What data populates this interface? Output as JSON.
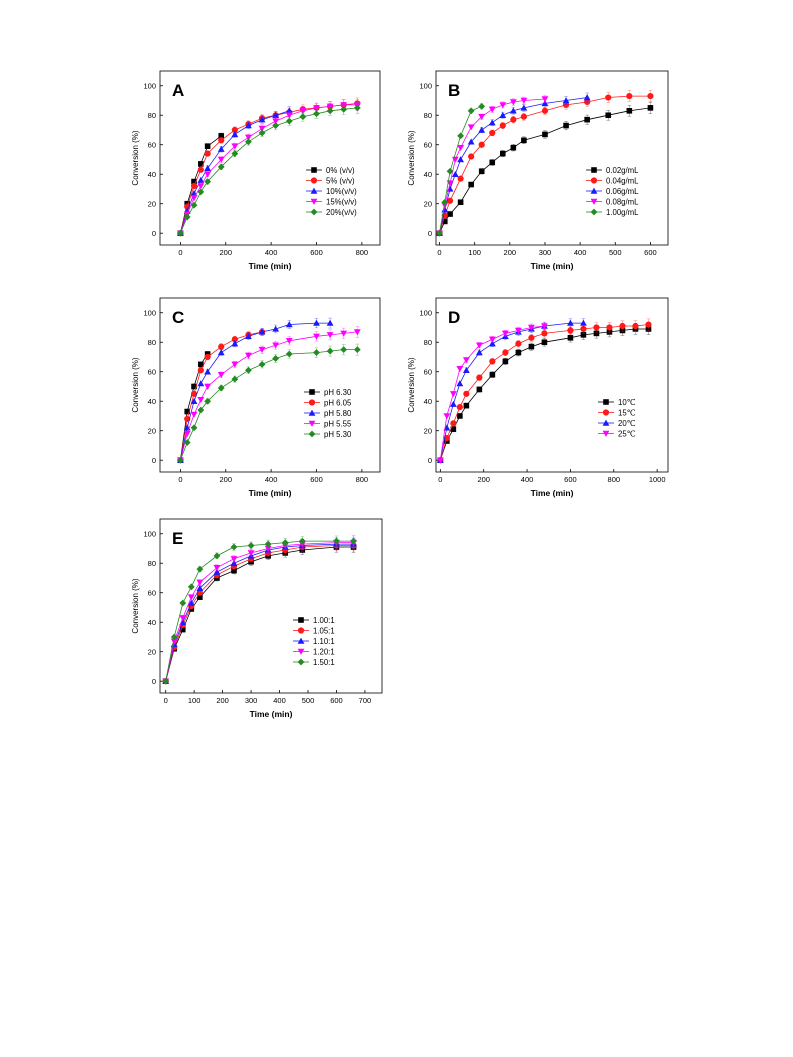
{
  "markers": [
    "square",
    "circle",
    "triangle-up",
    "triangle-down",
    "diamond"
  ],
  "chart_data": [
    {
      "type": "line",
      "panel_label": "A",
      "xlabel": "Time (min)",
      "ylabel": "Conversion (%)",
      "xlim": [
        -90,
        880
      ],
      "ylim": [
        -8,
        110
      ],
      "xticks": [
        0,
        200,
        400,
        600,
        800
      ],
      "yticks": [
        0,
        20,
        40,
        60,
        80,
        100
      ],
      "legend_position": "right",
      "series": [
        {
          "name": "0%  (v/v)",
          "color": "#000000",
          "marker": "square",
          "x": [
            0,
            30,
            60,
            90,
            120,
            180
          ],
          "y": [
            0,
            20,
            35,
            47,
            59,
            66
          ]
        },
        {
          "name": "5%  (v/v)",
          "color": "#ff1a1a",
          "marker": "circle",
          "x": [
            0,
            30,
            60,
            90,
            120,
            180,
            240,
            300,
            360,
            420,
            480,
            540,
            600,
            660,
            720,
            780
          ],
          "y": [
            0,
            18,
            32,
            43,
            54,
            63,
            70,
            74,
            78,
            80,
            82,
            84,
            85,
            86,
            87,
            88
          ]
        },
        {
          "name": "10%(v/v)",
          "color": "#1a1aff",
          "marker": "triangle-up",
          "x": [
            0,
            30,
            60,
            90,
            120,
            180,
            240,
            300,
            360,
            420,
            480
          ],
          "y": [
            0,
            15,
            27,
            36,
            44,
            57,
            67,
            73,
            77,
            80,
            83
          ]
        },
        {
          "name": "15%(v/v)",
          "color": "#ff00ff",
          "marker": "triangle-down",
          "x": [
            0,
            30,
            60,
            90,
            120,
            180,
            240,
            300,
            360,
            420,
            480,
            540,
            600,
            660,
            720,
            780
          ],
          "y": [
            0,
            13,
            24,
            32,
            40,
            50,
            59,
            65,
            71,
            76,
            80,
            83,
            85,
            86,
            87,
            87
          ]
        },
        {
          "name": "20%(v/v)",
          "color": "#228b22",
          "marker": "diamond",
          "x": [
            0,
            30,
            60,
            90,
            120,
            180,
            240,
            300,
            360,
            420,
            480,
            540,
            600,
            660,
            720,
            780
          ],
          "y": [
            0,
            11,
            19,
            28,
            35,
            45,
            54,
            62,
            68,
            73,
            76,
            79,
            81,
            83,
            84,
            85
          ]
        }
      ]
    },
    {
      "type": "line",
      "panel_label": "B",
      "xlabel": "Time (min)",
      "ylabel": "Conversion (%)",
      "xlim": [
        -10,
        650
      ],
      "ylim": [
        -8,
        110
      ],
      "xticks": [
        0,
        100,
        200,
        300,
        400,
        500,
        600
      ],
      "yticks": [
        0,
        20,
        40,
        60,
        80,
        100
      ],
      "legend_position": "right",
      "series": [
        {
          "name": "0.02g/mL",
          "color": "#000000",
          "marker": "square",
          "x": [
            0,
            15,
            30,
            60,
            90,
            120,
            150,
            180,
            210,
            240,
            300,
            360,
            420,
            480,
            540,
            600
          ],
          "y": [
            0,
            8,
            13,
            21,
            33,
            42,
            48,
            54,
            58,
            63,
            67,
            73,
            77,
            80,
            83,
            85
          ]
        },
        {
          "name": "0.04g/mL",
          "color": "#ff1a1a",
          "marker": "circle",
          "x": [
            0,
            15,
            30,
            60,
            90,
            120,
            150,
            180,
            210,
            240,
            300,
            360,
            420,
            480,
            540,
            600
          ],
          "y": [
            0,
            12,
            22,
            37,
            52,
            60,
            68,
            73,
            77,
            79,
            83,
            87,
            89,
            92,
            93,
            93
          ]
        },
        {
          "name": "0.06g/mL",
          "color": "#1a1aff",
          "marker": "triangle-up",
          "x": [
            0,
            15,
            30,
            45,
            60,
            90,
            120,
            150,
            180,
            210,
            240,
            300,
            360,
            420
          ],
          "y": [
            0,
            16,
            30,
            40,
            50,
            62,
            70,
            75,
            80,
            83,
            85,
            88,
            90,
            92
          ]
        },
        {
          "name": "0.08g/mL",
          "color": "#ff00ff",
          "marker": "triangle-down",
          "x": [
            0,
            15,
            30,
            45,
            60,
            90,
            120,
            150,
            180,
            210,
            240,
            300
          ],
          "y": [
            0,
            19,
            34,
            50,
            58,
            72,
            79,
            84,
            87,
            89,
            90,
            91
          ]
        },
        {
          "name": "1.00g/mL",
          "color": "#228b22",
          "marker": "diamond",
          "x": [
            0,
            15,
            30,
            60,
            90,
            120
          ],
          "y": [
            0,
            21,
            42,
            66,
            83,
            86
          ]
        }
      ]
    },
    {
      "type": "line",
      "panel_label": "C",
      "xlabel": "Time (min)",
      "ylabel": "Conversion (%)",
      "xlim": [
        -90,
        880
      ],
      "ylim": [
        -8,
        110
      ],
      "xticks": [
        0,
        200,
        400,
        600,
        800
      ],
      "yticks": [
        0,
        20,
        40,
        60,
        80,
        100
      ],
      "legend_position": "right",
      "series": [
        {
          "name": "pH 6.30",
          "color": "#000000",
          "marker": "square",
          "x": [
            0,
            30,
            60,
            90,
            120
          ],
          "y": [
            0,
            33,
            50,
            65,
            72
          ]
        },
        {
          "name": "pH 6.05",
          "color": "#ff1a1a",
          "marker": "circle",
          "x": [
            0,
            30,
            60,
            90,
            120,
            180,
            240,
            300,
            360
          ],
          "y": [
            0,
            28,
            45,
            61,
            70,
            77,
            82,
            85,
            87
          ]
        },
        {
          "name": "pH 5.80",
          "color": "#1a1aff",
          "marker": "triangle-up",
          "x": [
            0,
            30,
            60,
            90,
            120,
            180,
            240,
            300,
            360,
            420,
            480,
            600,
            660
          ],
          "y": [
            0,
            22,
            40,
            52,
            60,
            73,
            79,
            84,
            87,
            89,
            92,
            93,
            93
          ]
        },
        {
          "name": "pH 5.55",
          "color": "#ff00ff",
          "marker": "triangle-down",
          "x": [
            0,
            30,
            60,
            90,
            120,
            180,
            240,
            300,
            360,
            420,
            480,
            600,
            660,
            720,
            780
          ],
          "y": [
            0,
            18,
            31,
            41,
            50,
            58,
            65,
            71,
            75,
            78,
            81,
            84,
            85,
            86,
            87
          ]
        },
        {
          "name": "pH 5.30",
          "color": "#228b22",
          "marker": "diamond",
          "x": [
            0,
            30,
            60,
            90,
            120,
            180,
            240,
            300,
            360,
            420,
            480,
            600,
            660,
            720,
            780
          ],
          "y": [
            0,
            12,
            22,
            34,
            40,
            49,
            55,
            61,
            65,
            69,
            72,
            73,
            74,
            75,
            75
          ]
        }
      ]
    },
    {
      "type": "line",
      "panel_label": "D",
      "xlabel": "Time (min)",
      "ylabel": "Conversion (%)",
      "xlim": [
        -20,
        1050
      ],
      "ylim": [
        -8,
        110
      ],
      "xticks": [
        0,
        200,
        400,
        600,
        800,
        1000
      ],
      "yticks": [
        0,
        20,
        40,
        60,
        80,
        100
      ],
      "legend_position": "right",
      "series": [
        {
          "name": "10℃",
          "color": "#000000",
          "marker": "square",
          "x": [
            0,
            30,
            60,
            90,
            120,
            180,
            240,
            300,
            360,
            420,
            480,
            600,
            660,
            720,
            780,
            840,
            900,
            960
          ],
          "y": [
            0,
            13,
            21,
            30,
            37,
            48,
            58,
            67,
            73,
            77,
            80,
            83,
            85,
            86,
            87,
            88,
            89,
            89
          ]
        },
        {
          "name": "15℃",
          "color": "#ff1a1a",
          "marker": "circle",
          "x": [
            0,
            30,
            60,
            90,
            120,
            180,
            240,
            300,
            360,
            420,
            480,
            600,
            660,
            720,
            780,
            840,
            900,
            960
          ],
          "y": [
            0,
            15,
            25,
            36,
            45,
            56,
            67,
            73,
            79,
            83,
            86,
            88,
            89,
            90,
            90,
            91,
            91,
            92
          ]
        },
        {
          "name": "20℃",
          "color": "#1a1aff",
          "marker": "triangle-up",
          "x": [
            0,
            30,
            60,
            90,
            120,
            180,
            240,
            300,
            360,
            420,
            480,
            600,
            660
          ],
          "y": [
            0,
            22,
            38,
            52,
            61,
            73,
            79,
            84,
            87,
            89,
            91,
            93,
            93
          ]
        },
        {
          "name": "25℃",
          "color": "#ff00ff",
          "marker": "triangle-down",
          "x": [
            0,
            30,
            60,
            90,
            120,
            180,
            240,
            300,
            360,
            420,
            480
          ],
          "y": [
            0,
            30,
            45,
            62,
            68,
            78,
            82,
            86,
            88,
            90,
            91
          ]
        }
      ]
    },
    {
      "type": "line",
      "panel_label": "E",
      "xlabel": "Time (min)",
      "ylabel": "Conversion (%)",
      "xlim": [
        -20,
        760
      ],
      "ylim": [
        -8,
        110
      ],
      "xticks": [
        0,
        100,
        200,
        300,
        400,
        500,
        600,
        700
      ],
      "yticks": [
        0,
        20,
        40,
        60,
        80,
        100
      ],
      "legend_position": "right",
      "series": [
        {
          "name": "1.00:1",
          "color": "#000000",
          "marker": "square",
          "x": [
            0,
            30,
            60,
            90,
            120,
            180,
            240,
            300,
            360,
            420,
            480,
            600,
            660
          ],
          "y": [
            0,
            22,
            35,
            49,
            57,
            70,
            75,
            81,
            85,
            87,
            89,
            91,
            91
          ]
        },
        {
          "name": "1.05:1",
          "color": "#ff1a1a",
          "marker": "circle",
          "x": [
            0,
            30,
            60,
            90,
            120,
            180,
            240,
            300,
            360,
            420,
            480,
            600,
            660
          ],
          "y": [
            0,
            23,
            38,
            51,
            60,
            72,
            78,
            83,
            87,
            89,
            91,
            92,
            92
          ]
        },
        {
          "name": "1.10:1",
          "color": "#1a1aff",
          "marker": "triangle-up",
          "x": [
            0,
            30,
            60,
            90,
            120,
            180,
            240,
            300,
            360,
            420,
            480,
            600,
            660
          ],
          "y": [
            0,
            25,
            40,
            53,
            63,
            74,
            80,
            85,
            89,
            91,
            92,
            93,
            93
          ]
        },
        {
          "name": "1.20:1",
          "color": "#ff00ff",
          "marker": "triangle-down",
          "x": [
            0,
            30,
            60,
            90,
            120,
            180,
            240,
            300,
            360,
            420,
            480,
            600,
            660
          ],
          "y": [
            0,
            27,
            43,
            57,
            67,
            77,
            83,
            87,
            90,
            92,
            93,
            94,
            94
          ]
        },
        {
          "name": "1.50:1",
          "color": "#228b22",
          "marker": "diamond",
          "x": [
            0,
            30,
            60,
            90,
            120,
            180,
            240,
            300,
            360,
            420,
            480,
            600,
            660
          ],
          "y": [
            0,
            30,
            53,
            64,
            76,
            85,
            91,
            92,
            93,
            94,
            95,
            95,
            95
          ]
        }
      ]
    }
  ]
}
